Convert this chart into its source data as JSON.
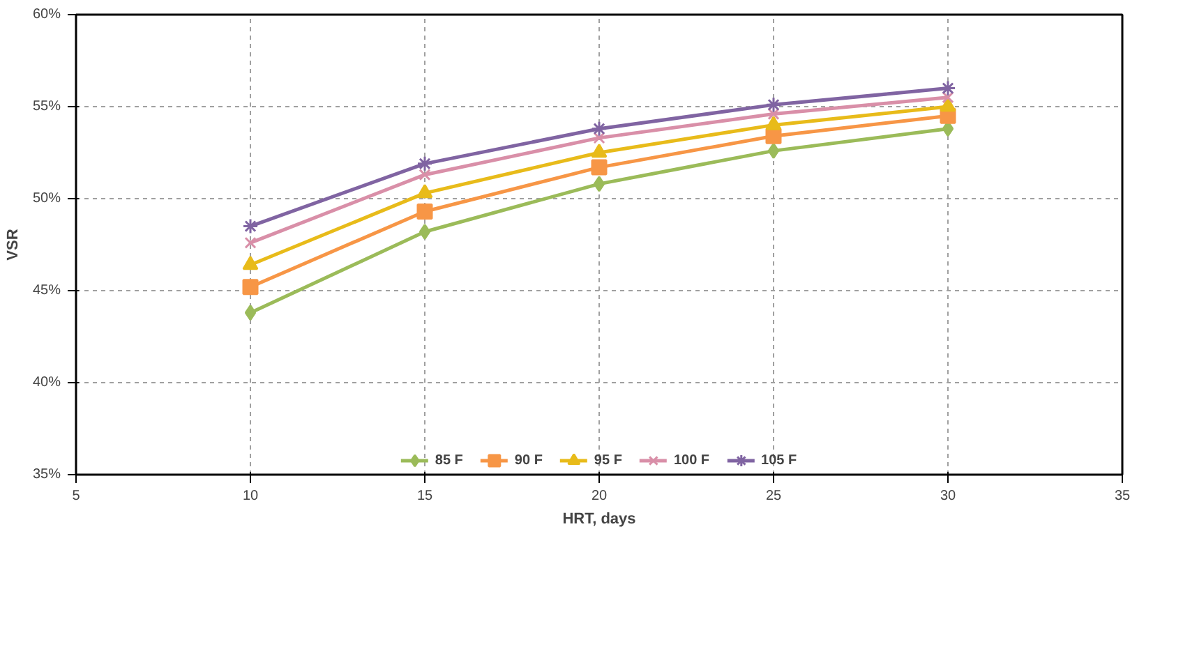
{
  "chart_data": {
    "type": "line",
    "xlabel": "HRT, days",
    "ylabel": "VSR",
    "x": [
      10,
      15,
      20,
      25,
      30
    ],
    "series": [
      {
        "name": "85 F",
        "color": "#9bbb59",
        "marker": "diamond",
        "values": [
          43.8,
          48.2,
          50.8,
          52.6,
          53.8
        ]
      },
      {
        "name": "90 F",
        "color": "#f79646",
        "marker": "square",
        "values": [
          45.2,
          49.3,
          51.7,
          53.4,
          54.5
        ]
      },
      {
        "name": "95 F",
        "color": "#e8bb1a",
        "marker": "triangle",
        "values": [
          46.4,
          50.3,
          52.5,
          54.0,
          55.0
        ]
      },
      {
        "name": "100 F",
        "color": "#d98fa8",
        "marker": "x",
        "values": [
          47.6,
          51.3,
          53.3,
          54.6,
          55.5
        ]
      },
      {
        "name": "105 F",
        "color": "#8064a2",
        "marker": "cross",
        "values": [
          48.5,
          51.9,
          53.8,
          55.1,
          56.0
        ]
      }
    ],
    "xlim": [
      5,
      35
    ],
    "xticks": [
      5,
      10,
      15,
      20,
      25,
      30,
      35
    ],
    "ylim": [
      35,
      60
    ],
    "yticks": [
      {
        "value": 35,
        "label": "35%"
      },
      {
        "value": 40,
        "label": "40%"
      },
      {
        "value": 45,
        "label": "45%"
      },
      {
        "value": 50,
        "label": "50%"
      },
      {
        "value": 55,
        "label": "55%"
      },
      {
        "value": 60,
        "label": "60%"
      }
    ],
    "grid": true,
    "legend": "bottom",
    "line_style": "solid"
  }
}
